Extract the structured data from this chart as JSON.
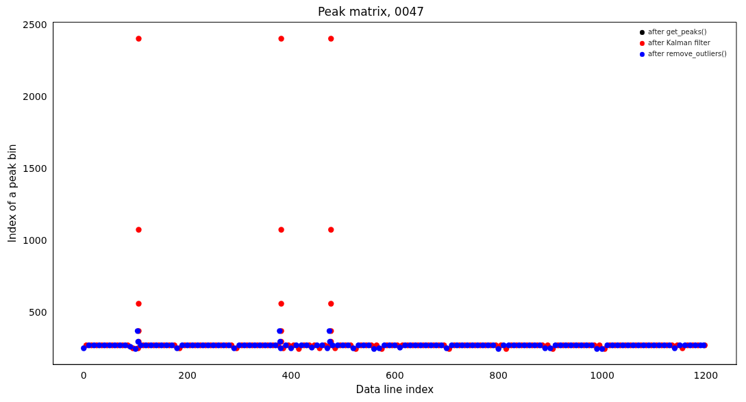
{
  "chart_data": {
    "type": "scatter",
    "title": "Peak matrix, 0047",
    "xlabel": "Data line index",
    "ylabel": "Index of a peak bin",
    "xlim": [
      -59,
      1259
    ],
    "ylim": [
      142,
      2525
    ],
    "xticks": [
      0,
      200,
      400,
      600,
      800,
      1000,
      1200
    ],
    "yticks": [
      500,
      1000,
      1500,
      2000,
      2500
    ],
    "grid": false,
    "legend": "top right",
    "marker": "circle",
    "series": [
      {
        "name": "after get_peaks()",
        "color": "#000000"
      },
      {
        "name": "after Kalman filter",
        "color": "#ff0000",
        "x": [
          5,
          15,
          25,
          35,
          45,
          55,
          65,
          75,
          85,
          95,
          105,
          115,
          125,
          135,
          145,
          155,
          165,
          175,
          185,
          195,
          205,
          215,
          225,
          235,
          245,
          255,
          265,
          275,
          285,
          295,
          305,
          315,
          325,
          335,
          345,
          355,
          365,
          375,
          385,
          395,
          405,
          415,
          425,
          435,
          445,
          455,
          465,
          475,
          485,
          495,
          505,
          515,
          525,
          535,
          545,
          555,
          565,
          575,
          585,
          595,
          605,
          615,
          625,
          635,
          645,
          655,
          665,
          675,
          685,
          695,
          705,
          715,
          725,
          735,
          745,
          755,
          765,
          775,
          785,
          795,
          805,
          815,
          825,
          835,
          845,
          855,
          865,
          875,
          885,
          895,
          905,
          915,
          925,
          935,
          945,
          955,
          965,
          975,
          985,
          995,
          1005,
          1015,
          1025,
          1035,
          1045,
          1055,
          1065,
          1075,
          1085,
          1095,
          1105,
          1115,
          1125,
          1135,
          1145,
          1155,
          1165,
          1175,
          1185,
          1195,
          1198,
          106,
          106,
          106,
          106,
          106,
          381,
          381,
          381,
          381,
          381,
          477,
          477,
          477,
          477,
          477
        ],
        "values": [
          275,
          275,
          275,
          275,
          275,
          275,
          275,
          275,
          275,
          255,
          255,
          275,
          275,
          275,
          275,
          275,
          275,
          275,
          255,
          275,
          275,
          275,
          275,
          275,
          275,
          275,
          275,
          275,
          275,
          255,
          275,
          275,
          275,
          275,
          275,
          275,
          275,
          275,
          255,
          275,
          275,
          250,
          275,
          275,
          275,
          255,
          275,
          275,
          255,
          275,
          275,
          275,
          250,
          275,
          275,
          275,
          275,
          250,
          275,
          275,
          275,
          275,
          275,
          275,
          275,
          275,
          275,
          275,
          275,
          275,
          250,
          275,
          275,
          275,
          275,
          275,
          275,
          275,
          275,
          275,
          275,
          250,
          275,
          275,
          275,
          275,
          275,
          275,
          275,
          275,
          250,
          275,
          275,
          275,
          275,
          275,
          275,
          275,
          275,
          275,
          250,
          275,
          275,
          275,
          275,
          275,
          275,
          275,
          275,
          275,
          275,
          275,
          275,
          275,
          275,
          255,
          275,
          275,
          275,
          null,
          275,
          2410,
          1080,
          565,
          375,
          300,
          2410,
          1080,
          565,
          375,
          300,
          2410,
          1080,
          565,
          375,
          300
        ]
      },
      {
        "name": "after remove_outliers()",
        "color": "#0000ff",
        "x": [
          0,
          10,
          20,
          30,
          40,
          50,
          60,
          70,
          80,
          90,
          100,
          110,
          120,
          130,
          140,
          150,
          160,
          170,
          180,
          190,
          200,
          210,
          220,
          230,
          240,
          250,
          260,
          270,
          280,
          290,
          300,
          310,
          320,
          330,
          340,
          350,
          360,
          370,
          380,
          390,
          400,
          410,
          420,
          430,
          440,
          450,
          460,
          470,
          480,
          490,
          500,
          510,
          520,
          530,
          540,
          550,
          560,
          570,
          580,
          590,
          600,
          610,
          620,
          630,
          640,
          650,
          660,
          670,
          680,
          690,
          700,
          710,
          720,
          730,
          740,
          750,
          760,
          770,
          780,
          790,
          800,
          810,
          820,
          830,
          840,
          850,
          860,
          870,
          880,
          890,
          900,
          910,
          920,
          930,
          940,
          950,
          960,
          970,
          980,
          990,
          1000,
          1010,
          1020,
          1030,
          1040,
          1050,
          1060,
          1070,
          1080,
          1090,
          1100,
          1110,
          1120,
          1130,
          1140,
          1150,
          1160,
          1170,
          1180,
          1190,
          1196,
          104,
          105,
          378,
          379,
          474,
          475
        ],
        "values": [
          255,
          275,
          275,
          275,
          275,
          275,
          275,
          275,
          275,
          265,
          250,
          275,
          275,
          275,
          275,
          275,
          275,
          275,
          255,
          275,
          275,
          275,
          275,
          275,
          275,
          275,
          275,
          275,
          275,
          255,
          275,
          275,
          275,
          275,
          275,
          275,
          275,
          275,
          255,
          275,
          255,
          275,
          275,
          275,
          260,
          275,
          275,
          255,
          275,
          275,
          275,
          275,
          255,
          275,
          275,
          275,
          250,
          255,
          275,
          275,
          275,
          260,
          275,
          275,
          275,
          275,
          275,
          275,
          275,
          275,
          255,
          275,
          275,
          275,
          275,
          275,
          275,
          275,
          275,
          275,
          250,
          275,
          275,
          275,
          275,
          275,
          275,
          275,
          275,
          255,
          255,
          275,
          275,
          275,
          275,
          275,
          275,
          275,
          275,
          250,
          250,
          275,
          275,
          275,
          275,
          275,
          275,
          275,
          275,
          275,
          275,
          275,
          275,
          275,
          255,
          275,
          275,
          275,
          275,
          275,
          275,
          375,
          300,
          375,
          300,
          375,
          300
        ]
      }
    ]
  }
}
